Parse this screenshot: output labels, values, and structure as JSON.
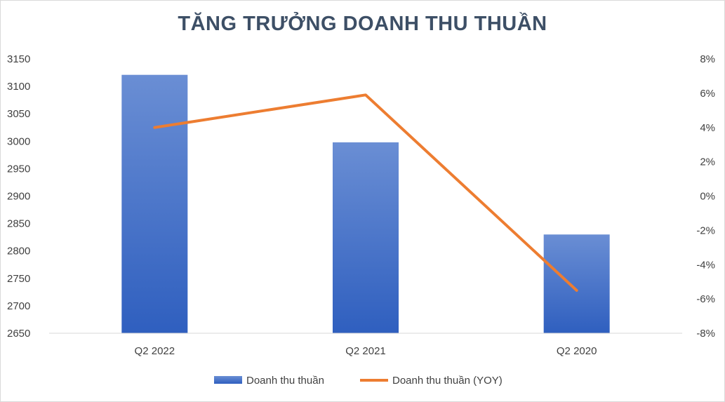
{
  "chart_data": {
    "type": "bar",
    "title": "TĂNG TRƯỞNG DOANH THU THUẦN",
    "categories": [
      "Q2 2022",
      "Q2 2021",
      "Q2 2020"
    ],
    "series": [
      {
        "name": "Doanh thu thuần",
        "type": "bar",
        "axis": "left",
        "values": [
          3121,
          2998,
          2830
        ],
        "color": "#4472c4"
      },
      {
        "name": "Doanh thu thuần (YOY)",
        "type": "line",
        "axis": "right",
        "values": [
          4.0,
          5.9,
          -5.5
        ],
        "color": "#ed7d31"
      }
    ],
    "y_left": {
      "ylim": [
        2650,
        3150
      ],
      "ticks": [
        "2650",
        "2700",
        "2750",
        "2800",
        "2850",
        "2900",
        "2950",
        "3000",
        "3050",
        "3100",
        "3150"
      ]
    },
    "y_right": {
      "ylim": [
        -8,
        8
      ],
      "ticks": [
        "-8%",
        "-6%",
        "-4%",
        "-2%",
        "0%",
        "2%",
        "4%",
        "6%",
        "8%"
      ]
    },
    "grid": false,
    "legend_position": "bottom"
  }
}
